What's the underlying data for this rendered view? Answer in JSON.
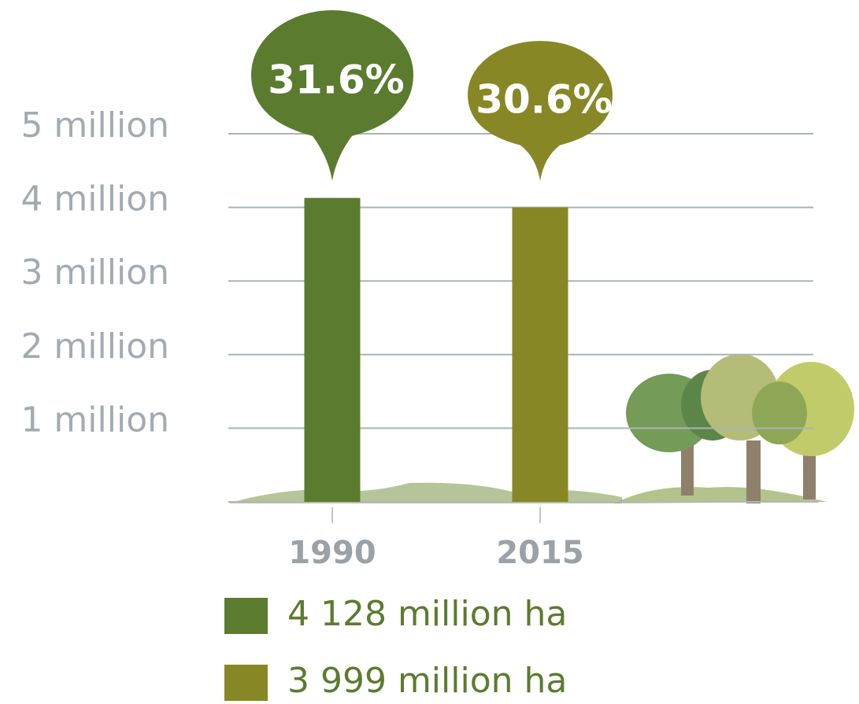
{
  "chart_data": {
    "type": "bar",
    "categories": [
      "1990",
      "2015"
    ],
    "series": [
      {
        "name": "4 128 million ha",
        "color": "#5b7b2f",
        "values": [
          4.128,
          null
        ]
      },
      {
        "name": "3 999 million ha",
        "color": "#878726",
        "values": [
          null,
          3.999
        ]
      }
    ],
    "callouts": [
      "31.6%",
      "30.6%"
    ],
    "ylim": [
      0,
      5
    ],
    "yticks": [
      {
        "value": 1,
        "label": "1 million"
      },
      {
        "value": 2,
        "label": "2 million"
      },
      {
        "value": 3,
        "label": "3 million"
      },
      {
        "value": 4,
        "label": "4 million"
      },
      {
        "value": 5,
        "label": "5 million"
      }
    ],
    "grid": true
  }
}
